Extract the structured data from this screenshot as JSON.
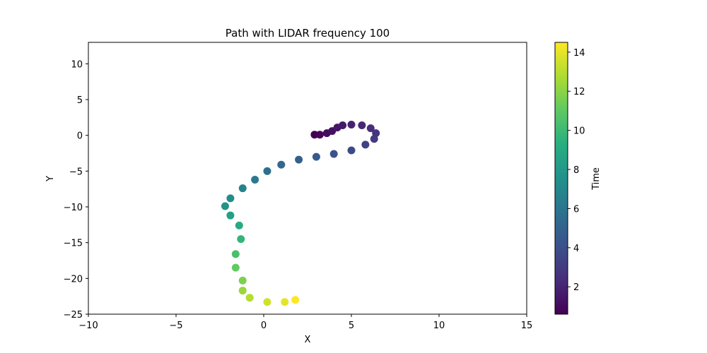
{
  "chart_data": {
    "type": "scatter",
    "title": "Path with LIDAR frequency 100",
    "xlabel": "X",
    "ylabel": "Y",
    "xlim": [
      -10,
      15
    ],
    "ylim": [
      -25,
      13
    ],
    "xticks": [
      -10,
      -5,
      0,
      5,
      10,
      15
    ],
    "yticks": [
      -25,
      -20,
      -15,
      -10,
      -5,
      0,
      5,
      10
    ],
    "grid": false,
    "colormap": "viridis",
    "colorbar": {
      "label": "Time",
      "range": [
        0.6,
        14.5
      ],
      "ticks": [
        2,
        4,
        6,
        8,
        10,
        12,
        14
      ]
    },
    "series": [
      {
        "x": [
          2.9,
          3.2,
          3.6,
          3.9,
          4.2,
          4.5,
          5.0,
          5.6,
          6.1,
          6.4,
          6.3,
          5.8,
          5.0,
          4.0,
          3.0,
          2.0,
          1.0,
          0.2,
          -0.5,
          -1.2,
          -1.9,
          -2.2,
          -1.9,
          -1.4,
          -1.3,
          -1.6,
          -1.6,
          -1.2,
          -1.2,
          -0.8,
          0.2,
          1.2,
          1.8
        ],
        "y": [
          0.1,
          0.1,
          0.3,
          0.6,
          1.1,
          1.4,
          1.5,
          1.4,
          1.0,
          0.3,
          -0.5,
          -1.3,
          -2.1,
          -2.6,
          -3.0,
          -3.4,
          -4.1,
          -5.0,
          -6.2,
          -7.4,
          -8.8,
          -9.9,
          -11.2,
          -12.6,
          -14.5,
          -16.6,
          -18.5,
          -20.3,
          -21.7,
          -22.7,
          -23.3,
          -23.3,
          -23.0
        ],
        "t": [
          0.6,
          0.8,
          1.0,
          1.2,
          1.4,
          1.6,
          1.9,
          2.1,
          2.4,
          2.7,
          3.0,
          3.3,
          3.7,
          4.1,
          4.5,
          4.9,
          5.3,
          5.7,
          6.2,
          6.7,
          7.3,
          7.8,
          8.4,
          9.1,
          9.7,
          10.4,
          11.1,
          11.7,
          12.3,
          12.9,
          13.5,
          14.0,
          14.5
        ]
      }
    ]
  }
}
